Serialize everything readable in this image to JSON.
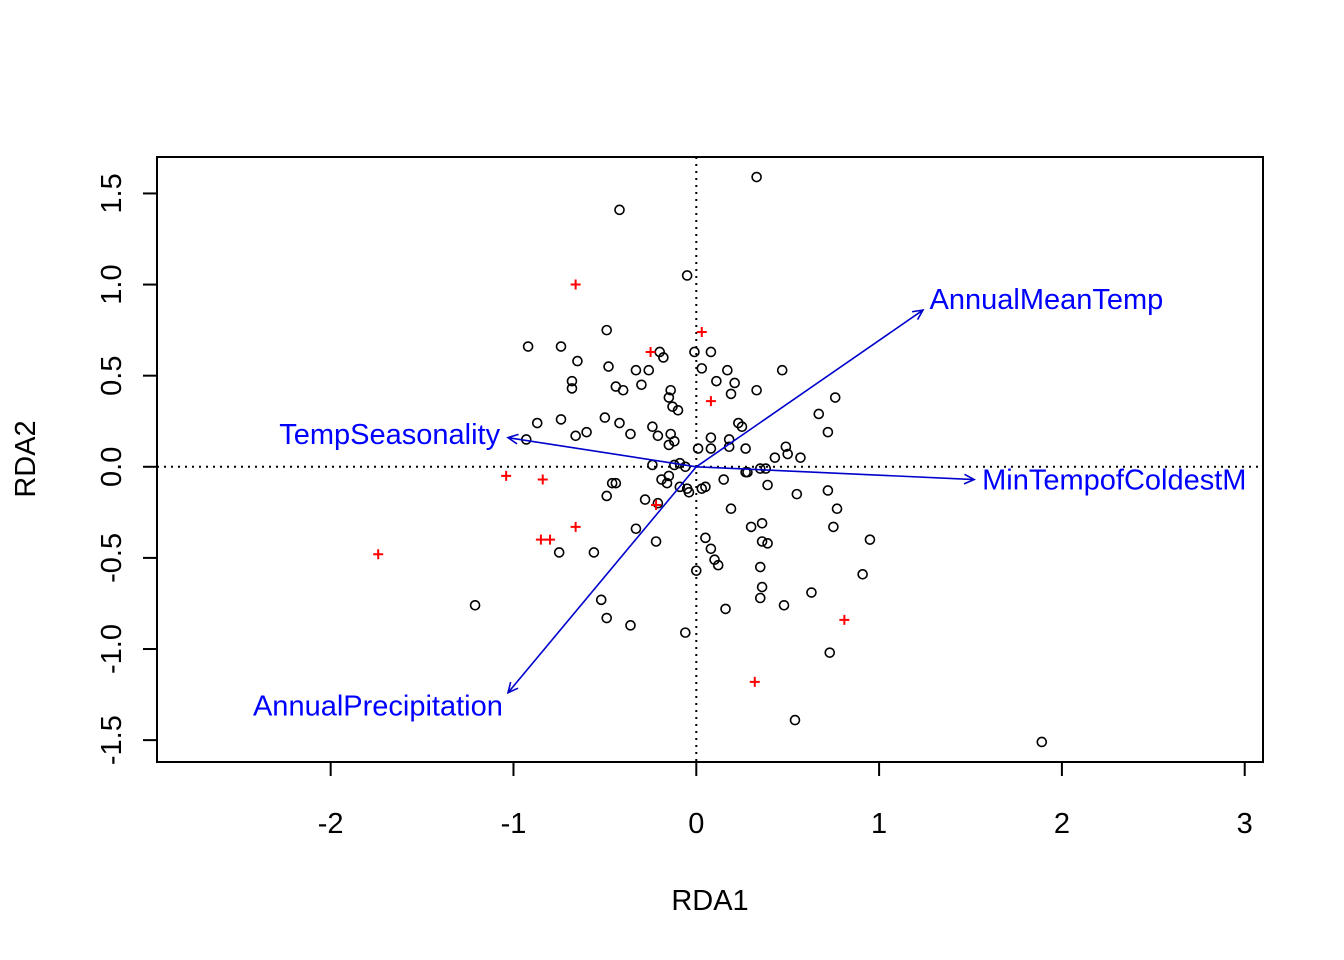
{
  "chart_data": {
    "type": "scatter",
    "title": "",
    "xlabel": "RDA1",
    "ylabel": "RDA2",
    "xlim": [
      -2.95,
      3.1
    ],
    "ylim": [
      -1.62,
      1.7
    ],
    "x_ticks": [
      -2,
      -1,
      0,
      1,
      2,
      3
    ],
    "y_ticks": [
      -1.5,
      -1.0,
      -0.5,
      0.0,
      0.5,
      1.0,
      1.5
    ],
    "x_tick_labels": [
      "-2",
      "-1",
      "0",
      "1",
      "2",
      "3"
    ],
    "y_tick_labels": [
      "-1.5",
      "-1.0",
      "-0.5",
      "0.0",
      "0.5",
      "1.0",
      "1.5"
    ],
    "reference_lines": {
      "x": 0,
      "y": 0,
      "style": "dotted"
    },
    "grid": false,
    "colors": {
      "points": "#000000",
      "sites": "#ff0000",
      "arrows": "#0000cc",
      "arrow_labels": "#0000ff"
    },
    "series": [
      {
        "marker": "open-circle",
        "color": "#000000",
        "points": [
          [
            0.33,
            1.59
          ],
          [
            -0.42,
            1.41
          ],
          [
            -0.05,
            1.05
          ],
          [
            -0.49,
            0.75
          ],
          [
            -0.92,
            0.66
          ],
          [
            -0.74,
            0.66
          ],
          [
            -0.65,
            0.58
          ],
          [
            -0.48,
            0.55
          ],
          [
            -0.2,
            0.63
          ],
          [
            -0.18,
            0.6
          ],
          [
            -0.01,
            0.63
          ],
          [
            0.08,
            0.63
          ],
          [
            0.03,
            0.54
          ],
          [
            0.17,
            0.53
          ],
          [
            -0.33,
            0.53
          ],
          [
            -0.26,
            0.53
          ],
          [
            -0.68,
            0.47
          ],
          [
            -0.68,
            0.43
          ],
          [
            -0.44,
            0.44
          ],
          [
            -0.4,
            0.42
          ],
          [
            -0.3,
            0.45
          ],
          [
            -0.14,
            0.42
          ],
          [
            -0.15,
            0.38
          ],
          [
            0.11,
            0.47
          ],
          [
            0.21,
            0.46
          ],
          [
            0.33,
            0.42
          ],
          [
            0.19,
            0.4
          ],
          [
            0.47,
            0.53
          ],
          [
            0.76,
            0.38
          ],
          [
            -0.13,
            0.33
          ],
          [
            -0.1,
            0.31
          ],
          [
            -0.87,
            0.24
          ],
          [
            -0.74,
            0.26
          ],
          [
            -0.5,
            0.27
          ],
          [
            -0.42,
            0.24
          ],
          [
            -0.24,
            0.22
          ],
          [
            -0.21,
            0.17
          ],
          [
            -0.36,
            0.18
          ],
          [
            -0.6,
            0.19
          ],
          [
            -0.66,
            0.17
          ],
          [
            -0.93,
            0.15
          ],
          [
            -0.14,
            0.18
          ],
          [
            -0.12,
            0.14
          ],
          [
            -0.15,
            0.12
          ],
          [
            0.08,
            0.16
          ],
          [
            0.23,
            0.24
          ],
          [
            0.25,
            0.22
          ],
          [
            0.18,
            0.15
          ],
          [
            0.27,
            0.1
          ],
          [
            0.18,
            0.11
          ],
          [
            0.08,
            0.1
          ],
          [
            0.01,
            0.1
          ],
          [
            0.49,
            0.11
          ],
          [
            0.5,
            0.07
          ],
          [
            0.43,
            0.05
          ],
          [
            0.57,
            0.05
          ],
          [
            0.67,
            0.29
          ],
          [
            0.72,
            0.19
          ],
          [
            -0.24,
            0.01
          ],
          [
            -0.12,
            0.01
          ],
          [
            -0.09,
            0.02
          ],
          [
            -0.06,
            0.0
          ],
          [
            -0.15,
            -0.05
          ],
          [
            -0.19,
            -0.07
          ],
          [
            -0.16,
            -0.09
          ],
          [
            -0.09,
            -0.11
          ],
          [
            -0.05,
            -0.12
          ],
          [
            -0.04,
            -0.14
          ],
          [
            -0.44,
            -0.09
          ],
          [
            -0.46,
            -0.09
          ],
          [
            -0.49,
            -0.16
          ],
          [
            -0.28,
            -0.18
          ],
          [
            -0.21,
            -0.2
          ],
          [
            0.05,
            -0.11
          ],
          [
            0.03,
            -0.12
          ],
          [
            0.15,
            -0.07
          ],
          [
            0.28,
            -0.03
          ],
          [
            0.27,
            -0.03
          ],
          [
            0.35,
            -0.01
          ],
          [
            0.38,
            -0.01
          ],
          [
            0.39,
            -0.1
          ],
          [
            0.55,
            -0.15
          ],
          [
            0.19,
            -0.23
          ],
          [
            0.72,
            -0.13
          ],
          [
            0.77,
            -0.23
          ],
          [
            -0.33,
            -0.34
          ],
          [
            -0.22,
            -0.41
          ],
          [
            -0.75,
            -0.47
          ],
          [
            -0.56,
            -0.47
          ],
          [
            0.05,
            -0.39
          ],
          [
            0.08,
            -0.45
          ],
          [
            0.1,
            -0.51
          ],
          [
            0.12,
            -0.54
          ],
          [
            0.3,
            -0.33
          ],
          [
            0.36,
            -0.31
          ],
          [
            0.36,
            -0.41
          ],
          [
            0.39,
            -0.42
          ],
          [
            0.35,
            -0.55
          ],
          [
            0.36,
            -0.66
          ],
          [
            0.35,
            -0.72
          ],
          [
            0.48,
            -0.76
          ],
          [
            0.63,
            -0.69
          ],
          [
            0.75,
            -0.33
          ],
          [
            0.95,
            -0.4
          ],
          [
            0.91,
            -0.59
          ],
          [
            0.0,
            -0.57
          ],
          [
            -0.52,
            -0.73
          ],
          [
            -0.49,
            -0.83
          ],
          [
            -0.36,
            -0.87
          ],
          [
            -0.06,
            -0.91
          ],
          [
            0.16,
            -0.78
          ],
          [
            -1.21,
            -0.76
          ],
          [
            0.73,
            -1.02
          ],
          [
            0.54,
            -1.39
          ],
          [
            1.89,
            -1.51
          ]
        ]
      },
      {
        "marker": "plus",
        "color": "#ff0000",
        "points": [
          [
            -0.66,
            1.0
          ],
          [
            0.03,
            0.74
          ],
          [
            -0.25,
            0.63
          ],
          [
            0.08,
            0.36
          ],
          [
            -1.04,
            -0.05
          ],
          [
            -0.84,
            -0.07
          ],
          [
            -0.22,
            -0.21
          ],
          [
            -0.66,
            -0.33
          ],
          [
            -0.85,
            -0.4
          ],
          [
            -0.8,
            -0.4
          ],
          [
            -1.74,
            -0.48
          ],
          [
            0.81,
            -0.84
          ],
          [
            0.32,
            -1.18
          ]
        ]
      }
    ],
    "arrows": [
      {
        "label": "AnnualMeanTemp",
        "x": 1.24,
        "y": 0.86
      },
      {
        "label": "TempSeasonality",
        "x": -1.03,
        "y": 0.16
      },
      {
        "label": "MinTempofColdestM",
        "x": 1.52,
        "y": -0.07
      },
      {
        "label": "AnnualPrecipitation",
        "x": -1.03,
        "y": -1.24
      }
    ]
  }
}
